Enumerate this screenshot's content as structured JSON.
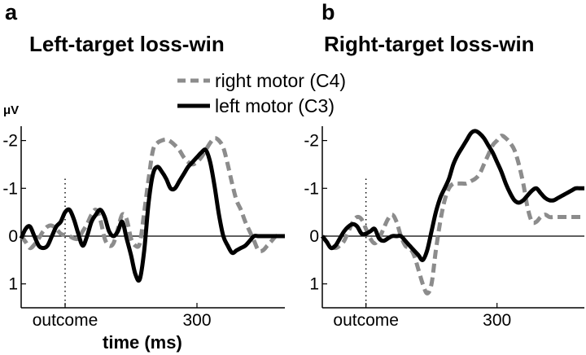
{
  "legend": {
    "right_motor": "right motor (C4)",
    "left_motor": "left motor (C3)"
  },
  "y_unit": "μV",
  "xlabel": "time (ms)",
  "colors": {
    "right_motor": "#8c8c8c",
    "left_motor": "#000000"
  },
  "chart_data": [
    {
      "panel": "a",
      "title": "Left-target loss-win",
      "type": "line",
      "ylim_inverted": [
        -2.3,
        1.5
      ],
      "yticks": [
        -2,
        -1,
        0,
        1
      ],
      "ytick_labels": [
        "-2",
        "-1",
        "0",
        "1"
      ],
      "xlim": [
        -100,
        500
      ],
      "xticks": [
        0,
        300
      ],
      "xtick_labels": [
        "outcome",
        "300"
      ],
      "grid": false,
      "series": [
        {
          "key": "right_motor",
          "x": [
            -100,
            -90,
            -80,
            -70,
            -60,
            -50,
            -40,
            -30,
            -20,
            -10,
            0,
            10,
            20,
            30,
            40,
            50,
            60,
            70,
            80,
            90,
            100,
            110,
            120,
            130,
            140,
            150,
            160,
            170,
            180,
            190,
            200,
            210,
            220,
            230,
            240,
            250,
            260,
            270,
            280,
            290,
            300,
            310,
            320,
            330,
            340,
            350,
            360,
            370,
            380,
            390,
            400,
            410,
            420,
            430,
            440,
            450,
            460,
            470,
            480,
            490,
            500
          ],
          "y": [
            0.0,
            0.12,
            0.25,
            0.18,
            0.05,
            -0.1,
            -0.2,
            -0.22,
            -0.15,
            -0.05,
            -0.02,
            0.0,
            0.05,
            0.05,
            -0.1,
            -0.25,
            -0.45,
            -0.55,
            -0.35,
            0.05,
            0.2,
            0.15,
            -0.15,
            -0.45,
            -0.35,
            0.05,
            0.2,
            0.15,
            -0.5,
            -1.2,
            -1.8,
            -1.95,
            -2.0,
            -2.02,
            -1.98,
            -1.9,
            -1.8,
            -1.65,
            -1.55,
            -1.5,
            -1.55,
            -1.65,
            -1.8,
            -1.95,
            -2.05,
            -2.0,
            -1.85,
            -1.5,
            -1.1,
            -0.75,
            -0.55,
            -0.3,
            -0.1,
            0.1,
            0.3,
            0.3,
            0.2,
            0.1,
            0.0,
            0.0,
            0.0
          ]
        },
        {
          "key": "left_motor",
          "x": [
            -100,
            -90,
            -80,
            -70,
            -60,
            -50,
            -40,
            -30,
            -20,
            -10,
            0,
            10,
            20,
            30,
            40,
            50,
            60,
            70,
            80,
            90,
            100,
            110,
            120,
            130,
            140,
            150,
            160,
            170,
            180,
            190,
            200,
            210,
            220,
            230,
            240,
            250,
            260,
            270,
            280,
            290,
            300,
            310,
            320,
            330,
            340,
            350,
            360,
            370,
            380,
            390,
            400,
            410,
            420,
            430,
            440,
            450,
            460,
            470,
            480,
            490,
            500
          ],
          "y": [
            0.05,
            -0.15,
            -0.2,
            0.0,
            0.2,
            0.25,
            0.2,
            0.0,
            -0.2,
            -0.3,
            -0.5,
            -0.55,
            -0.35,
            -0.05,
            0.2,
            0.0,
            -0.3,
            -0.45,
            -0.55,
            -0.4,
            -0.1,
            0.0,
            -0.1,
            -0.3,
            0.05,
            0.4,
            0.8,
            0.9,
            0.3,
            -0.7,
            -1.3,
            -1.45,
            -1.35,
            -1.2,
            -1.0,
            -1.0,
            -1.15,
            -1.3,
            -1.45,
            -1.55,
            -1.65,
            -1.75,
            -1.8,
            -1.55,
            -1.05,
            -0.45,
            0.0,
            0.2,
            0.35,
            0.3,
            0.25,
            0.2,
            0.1,
            0.0,
            0.0,
            0.0,
            0.0,
            0.0,
            0.0,
            0.0,
            0.0
          ]
        }
      ]
    },
    {
      "panel": "b",
      "title": "Right-target loss-win",
      "type": "line",
      "ylim_inverted": [
        -2.3,
        1.5
      ],
      "yticks": [
        -2,
        -1,
        0,
        1
      ],
      "ytick_labels": [
        "-2",
        "-1",
        "0",
        "1"
      ],
      "xlim": [
        -100,
        500
      ],
      "xticks": [
        0,
        300
      ],
      "xtick_labels": [
        "outcome",
        "300"
      ],
      "grid": false,
      "series": [
        {
          "key": "right_motor",
          "x": [
            -100,
            -90,
            -80,
            -70,
            -60,
            -50,
            -40,
            -30,
            -20,
            -10,
            0,
            10,
            20,
            30,
            40,
            50,
            60,
            70,
            80,
            90,
            100,
            110,
            120,
            130,
            140,
            150,
            160,
            170,
            180,
            190,
            200,
            210,
            220,
            230,
            240,
            250,
            260,
            270,
            280,
            290,
            300,
            310,
            320,
            330,
            340,
            350,
            360,
            370,
            380,
            390,
            400,
            410,
            420,
            430,
            440,
            450,
            460,
            470,
            480,
            490,
            500
          ],
          "y": [
            0.0,
            0.12,
            0.2,
            0.25,
            0.2,
            0.1,
            -0.1,
            -0.3,
            -0.4,
            -0.35,
            -0.15,
            0.05,
            0.15,
            0.05,
            -0.15,
            -0.35,
            -0.45,
            -0.3,
            0.0,
            0.2,
            0.25,
            0.4,
            0.7,
            1.0,
            1.2,
            1.0,
            0.3,
            -0.3,
            -0.75,
            -1.0,
            -1.1,
            -1.1,
            -1.1,
            -1.1,
            -1.15,
            -1.2,
            -1.3,
            -1.5,
            -1.7,
            -1.9,
            -2.0,
            -2.1,
            -2.05,
            -1.95,
            -1.8,
            -1.5,
            -1.1,
            -0.6,
            -0.3,
            -0.3,
            -0.4,
            -0.45,
            -0.4,
            -0.4,
            -0.4,
            -0.4,
            -0.4,
            -0.4,
            -0.4,
            -0.4,
            -0.4
          ]
        },
        {
          "key": "left_motor",
          "x": [
            -100,
            -90,
            -80,
            -70,
            -60,
            -50,
            -40,
            -30,
            -20,
            -10,
            0,
            10,
            20,
            30,
            40,
            50,
            60,
            70,
            80,
            90,
            100,
            110,
            120,
            130,
            140,
            150,
            160,
            170,
            180,
            190,
            200,
            210,
            220,
            230,
            240,
            250,
            260,
            270,
            280,
            290,
            300,
            310,
            320,
            330,
            340,
            350,
            360,
            370,
            380,
            390,
            400,
            410,
            420,
            430,
            440,
            450,
            460,
            470,
            480,
            490,
            500
          ],
          "y": [
            0.0,
            0.12,
            0.25,
            0.2,
            0.05,
            -0.1,
            -0.2,
            -0.25,
            -0.2,
            -0.05,
            -0.05,
            -0.1,
            -0.15,
            0.05,
            0.1,
            0.05,
            0.0,
            0.0,
            0.0,
            0.1,
            0.2,
            0.3,
            0.4,
            0.5,
            0.3,
            -0.1,
            -0.5,
            -0.8,
            -1.0,
            -1.2,
            -1.5,
            -1.7,
            -1.85,
            -2.0,
            -2.15,
            -2.2,
            -2.15,
            -2.05,
            -1.9,
            -1.75,
            -1.55,
            -1.35,
            -1.1,
            -0.9,
            -0.75,
            -0.7,
            -0.75,
            -0.85,
            -0.95,
            -1.0,
            -0.9,
            -0.8,
            -0.75,
            -0.75,
            -0.8,
            -0.85,
            -0.9,
            -0.95,
            -1.0,
            -1.0,
            -1.0
          ]
        }
      ]
    }
  ]
}
